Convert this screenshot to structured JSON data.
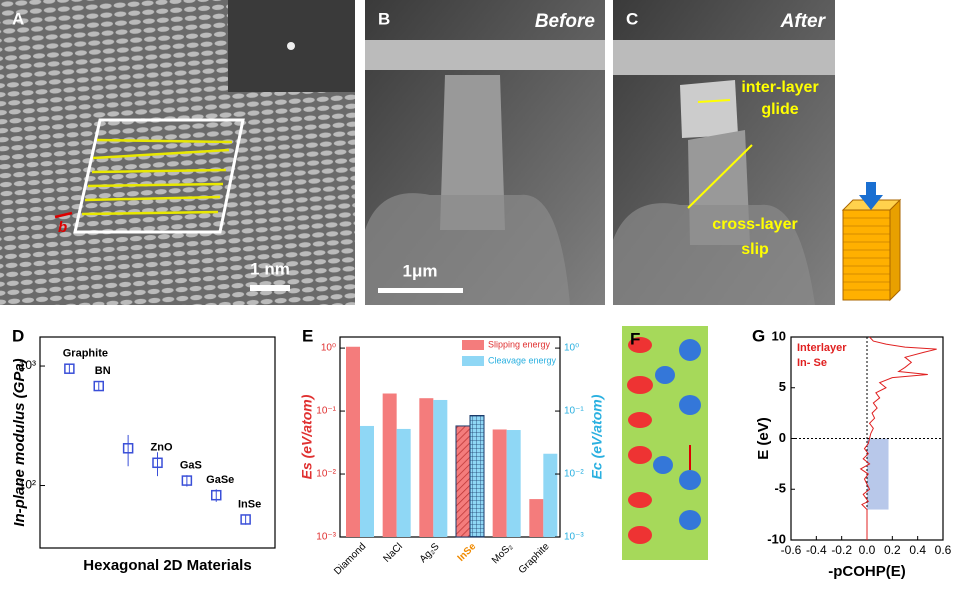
{
  "image_panels": [
    {
      "label": "A",
      "scale_bar": "1 nm",
      "vector_label": "b"
    },
    {
      "label": "B",
      "title": "Before",
      "scale_bar": "1μm"
    },
    {
      "label": "C",
      "title": "After",
      "annotations": [
        [
          "inter-layer",
          "glide"
        ],
        [
          "cross-layer",
          "slip"
        ]
      ]
    },
    {
      "label": "F"
    }
  ],
  "chart_data": [
    {
      "type": "scatter",
      "label": "D",
      "x_label": "Hexagonal 2D Materials",
      "y_label": "In-plane modulus (GPa)",
      "log_y": true,
      "point_labels": [
        "Graphite",
        "BN",
        null,
        "ZnO",
        "GaS",
        "GaSe",
        "InSe"
      ],
      "x": [
        1,
        2,
        3,
        4,
        5,
        6,
        7
      ],
      "values": [
        950,
        680,
        205,
        155,
        110,
        83,
        52
      ],
      "errors": [
        90,
        50,
        60,
        35,
        12,
        10,
        5
      ],
      "color": "#3a4fd8",
      "xlim": [
        0,
        8
      ],
      "ylim": [
        30,
        1750
      ],
      "yticks": [
        {
          "value": 100,
          "label": "10²"
        },
        {
          "value": 1000,
          "label": "10³"
        }
      ]
    },
    {
      "type": "bar",
      "label": "E",
      "y_label": "Es (eV/atom)",
      "y2_label": "Ec (eV/atom)",
      "log_y": true,
      "highlight_index": 3,
      "categories": [
        "Diamond",
        "NaCl",
        "Ag₂S",
        "InSe",
        "MoS₂",
        "Graphite"
      ],
      "series": [
        {
          "name": "Slipping energy",
          "color": "#f47c7c",
          "values": [
            1.05,
            0.19,
            0.16,
            0.058,
            0.051,
            0.004
          ]
        },
        {
          "name": "Cleavage energy",
          "color": "#8fd7f5",
          "values": [
            0.058,
            0.052,
            0.15,
            0.085,
            0.05,
            0.021
          ],
          "axis": "y2"
        }
      ],
      "ylim": [
        0.001,
        1.5
      ],
      "y2lim": [
        0.001,
        1.5
      ],
      "yticks": [
        {
          "value": 1,
          "label": "10⁰"
        },
        {
          "value": 0.1,
          "label": "10⁻¹"
        },
        {
          "value": 0.01,
          "label": "10⁻²"
        },
        {
          "value": 0.001,
          "label": "10⁻³"
        }
      ],
      "y2ticks": [
        {
          "value": 1,
          "label": "10⁰"
        },
        {
          "value": 0.1,
          "label": "10⁻¹"
        },
        {
          "value": 0.01,
          "label": "10⁻²"
        },
        {
          "value": 0.001,
          "label": "10⁻³"
        }
      ],
      "legend": "top-right"
    },
    {
      "type": "line",
      "label": "G",
      "x_label": "-pCOHP(E)",
      "y_label": "E (eV)",
      "annotations": [
        "Interlayer",
        "In- Se"
      ],
      "series": [
        {
          "color": "#e02020",
          "x": [
            0,
            0,
            -0.04,
            0.01,
            -0.03,
            0.02,
            -0.02,
            0.01,
            -0.05,
            0.02,
            -0.03,
            0.01,
            -0.02,
            0.01,
            0.02,
            0.03,
            0.05,
            0.02,
            0.06,
            0.04,
            0.08,
            0.05,
            0.1,
            0.07,
            0.15,
            0.1,
            0.2,
            0.48,
            0.25,
            0.3,
            0.35,
            0.3,
            0.45,
            0.55,
            0.3,
            0.15,
            0.05,
            0.02
          ],
          "values": [
            -10,
            -7,
            -6.5,
            -6.2,
            -5.5,
            -5,
            -4,
            -3.5,
            -3,
            -2.5,
            -2,
            -1.5,
            -1,
            -0.5,
            0,
            0.5,
            1,
            1.5,
            2,
            2.5,
            3,
            3.5,
            4,
            4.5,
            5,
            5.5,
            6,
            6.3,
            6.6,
            7,
            7.5,
            8,
            8.5,
            8.8,
            9,
            9.3,
            9.6,
            10
          ]
        }
      ],
      "shaded_region": {
        "x": [
          0,
          0.17
        ],
        "y": [
          -7,
          0
        ]
      },
      "xlim": [
        -0.6,
        0.6
      ],
      "ylim": [
        -10,
        10
      ],
      "xticks": [
        -0.6,
        -0.4,
        -0.2,
        {
          "value": 0,
          "label": "0.0"
        },
        0.2,
        0.4,
        0.6
      ],
      "yticks": [
        10,
        5,
        0,
        -5,
        -10
      ]
    }
  ]
}
